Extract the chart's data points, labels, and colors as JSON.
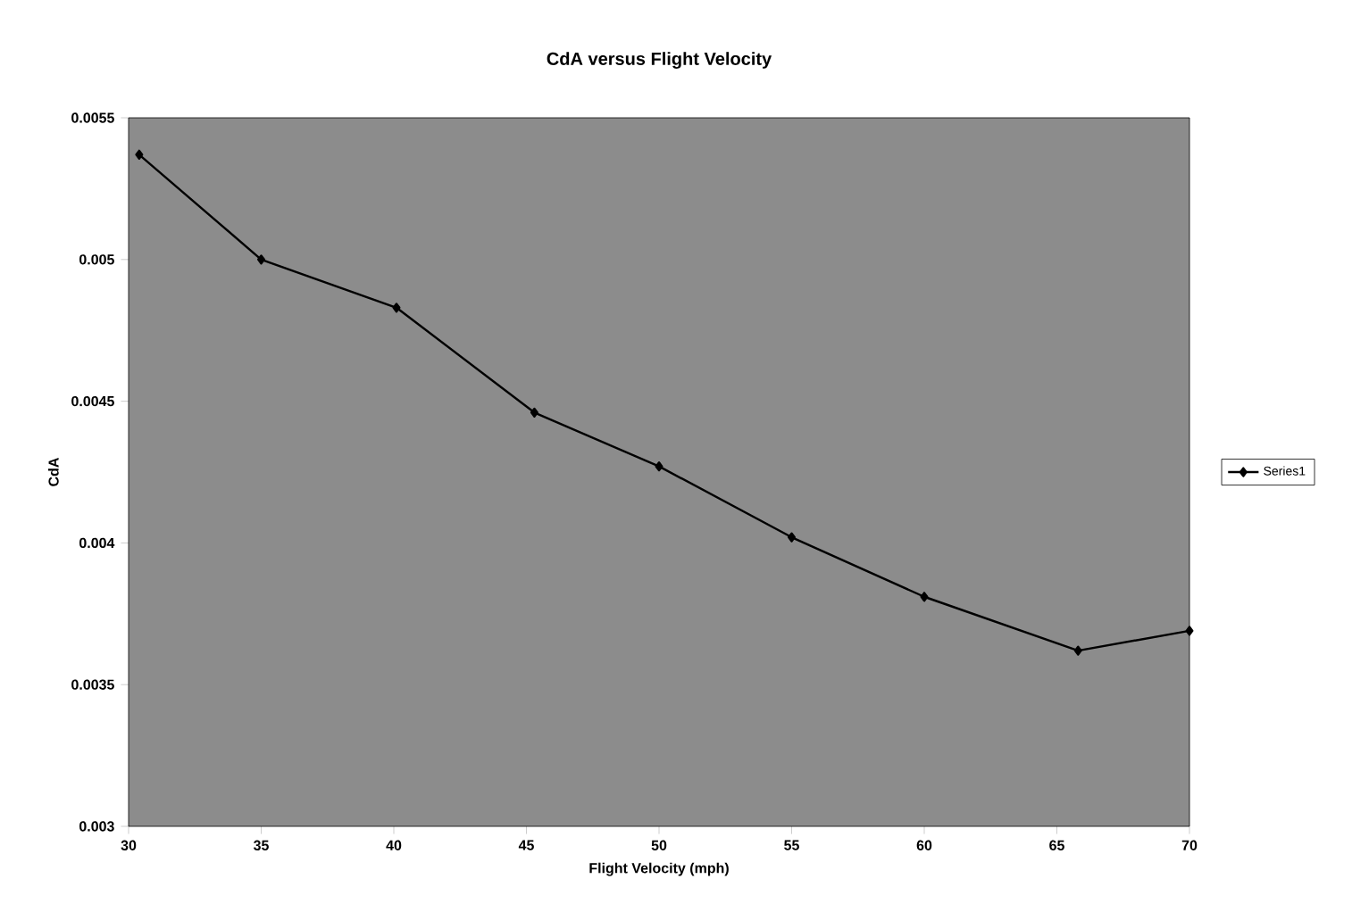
{
  "chart_data": {
    "type": "line",
    "title": "CdA versus Flight Velocity",
    "xlabel": "Flight Velocity (mph)",
    "ylabel": "CdA",
    "x": [
      30.4,
      35,
      40.1,
      45.3,
      50,
      55,
      60,
      65.8,
      70
    ],
    "series": [
      {
        "name": "Series1",
        "color": "#000000",
        "values": [
          0.00537,
          0.005,
          0.00483,
          0.00446,
          0.00427,
          0.00402,
          0.00381,
          0.00362,
          0.00369
        ]
      }
    ],
    "xlim": [
      30,
      70
    ],
    "xticks": [
      30,
      35,
      40,
      45,
      50,
      55,
      60,
      65,
      70
    ],
    "ylim": [
      0.003,
      0.0055
    ],
    "yticks": [
      {
        "value": 0.003,
        "label": "0.003"
      },
      {
        "value": 0.0035,
        "label": "0.0035"
      },
      {
        "value": 0.004,
        "label": "0.004"
      },
      {
        "value": 0.0045,
        "label": "0.0045"
      },
      {
        "value": 0.005,
        "label": "0.005"
      },
      {
        "value": 0.0055,
        "label": "0.0055"
      }
    ],
    "grid": false,
    "legend": "right",
    "marker": "diamond",
    "line_style": "solid"
  }
}
